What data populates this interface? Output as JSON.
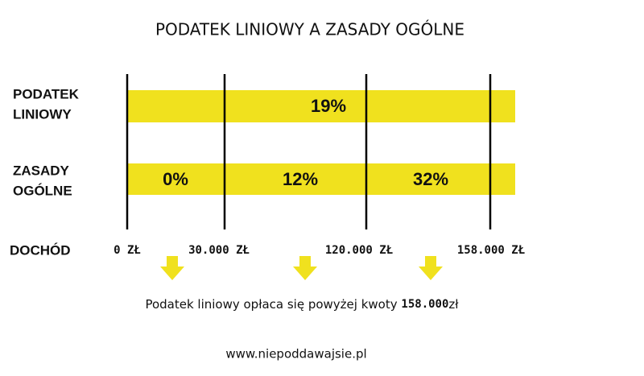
{
  "title": "PODATEK LINIOWY A ZASADY OGÓLNE",
  "rows": [
    {
      "label": [
        "PODATEK",
        "LINIOWY"
      ],
      "segments": [
        "19%"
      ]
    },
    {
      "label": [
        "ZASADY",
        "OGÓLNE"
      ],
      "segments": [
        "0%",
        "12%",
        "32%"
      ]
    }
  ],
  "income_label": "DOCHÓD",
  "thresholds": [
    "0 ZŁ",
    "30.000 ZŁ",
    "120.000 ZŁ",
    "158.000 ZŁ"
  ],
  "footer": {
    "text": "Podatek liniowy opłaca się powyżej kwoty",
    "amount": "158.000",
    "unit": "zł"
  },
  "website": "www.niepoddawajsie.pl"
}
